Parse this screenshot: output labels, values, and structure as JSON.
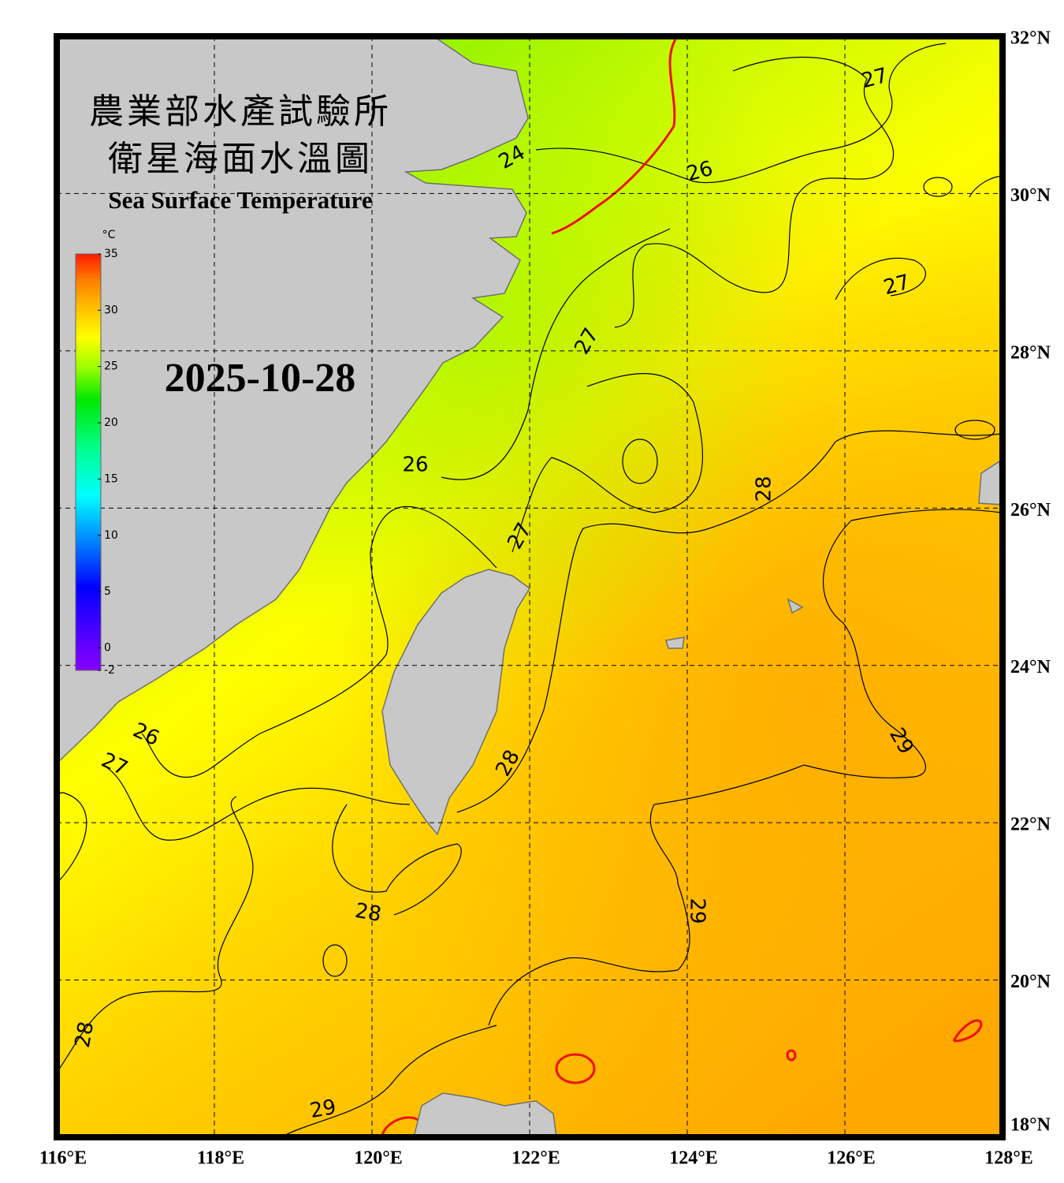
{
  "title_zh": [
    "農業部水產試驗所",
    "衛星海面水溫圖"
  ],
  "title_en": "Sea Surface Temperature",
  "date": "2025-10-28",
  "colorbar": {
    "unit": "°C",
    "lim": [
      -2,
      35
    ],
    "ticks": [
      35,
      30,
      25,
      20,
      15,
      10,
      5,
      0,
      -2
    ]
  },
  "map": {
    "lon_lim": [
      116,
      128
    ],
    "lat_lim": [
      18,
      32
    ],
    "grid": true,
    "lat_ticks": [
      {
        "value": 32,
        "label": "32°N"
      },
      {
        "value": 30,
        "label": "30°N"
      },
      {
        "value": 28,
        "label": "28°N"
      },
      {
        "value": 26,
        "label": "26°N"
      },
      {
        "value": 24,
        "label": "24°N"
      },
      {
        "value": 22,
        "label": "22°N"
      },
      {
        "value": 20,
        "label": "20°N"
      },
      {
        "value": 18,
        "label": "18°N"
      }
    ],
    "lon_ticks": [
      {
        "value": 116,
        "label": "116°E"
      },
      {
        "value": 118,
        "label": "118°E"
      },
      {
        "value": 120,
        "label": "120°E"
      },
      {
        "value": 122,
        "label": "122°E"
      },
      {
        "value": 124,
        "label": "124°E"
      },
      {
        "value": 126,
        "label": "126°E"
      },
      {
        "value": 128,
        "label": "128°E"
      }
    ]
  },
  "contour_labels": [
    24,
    26,
    27,
    27,
    27,
    26,
    28,
    27,
    26,
    27,
    28,
    29,
    28,
    29,
    28,
    29
  ]
}
